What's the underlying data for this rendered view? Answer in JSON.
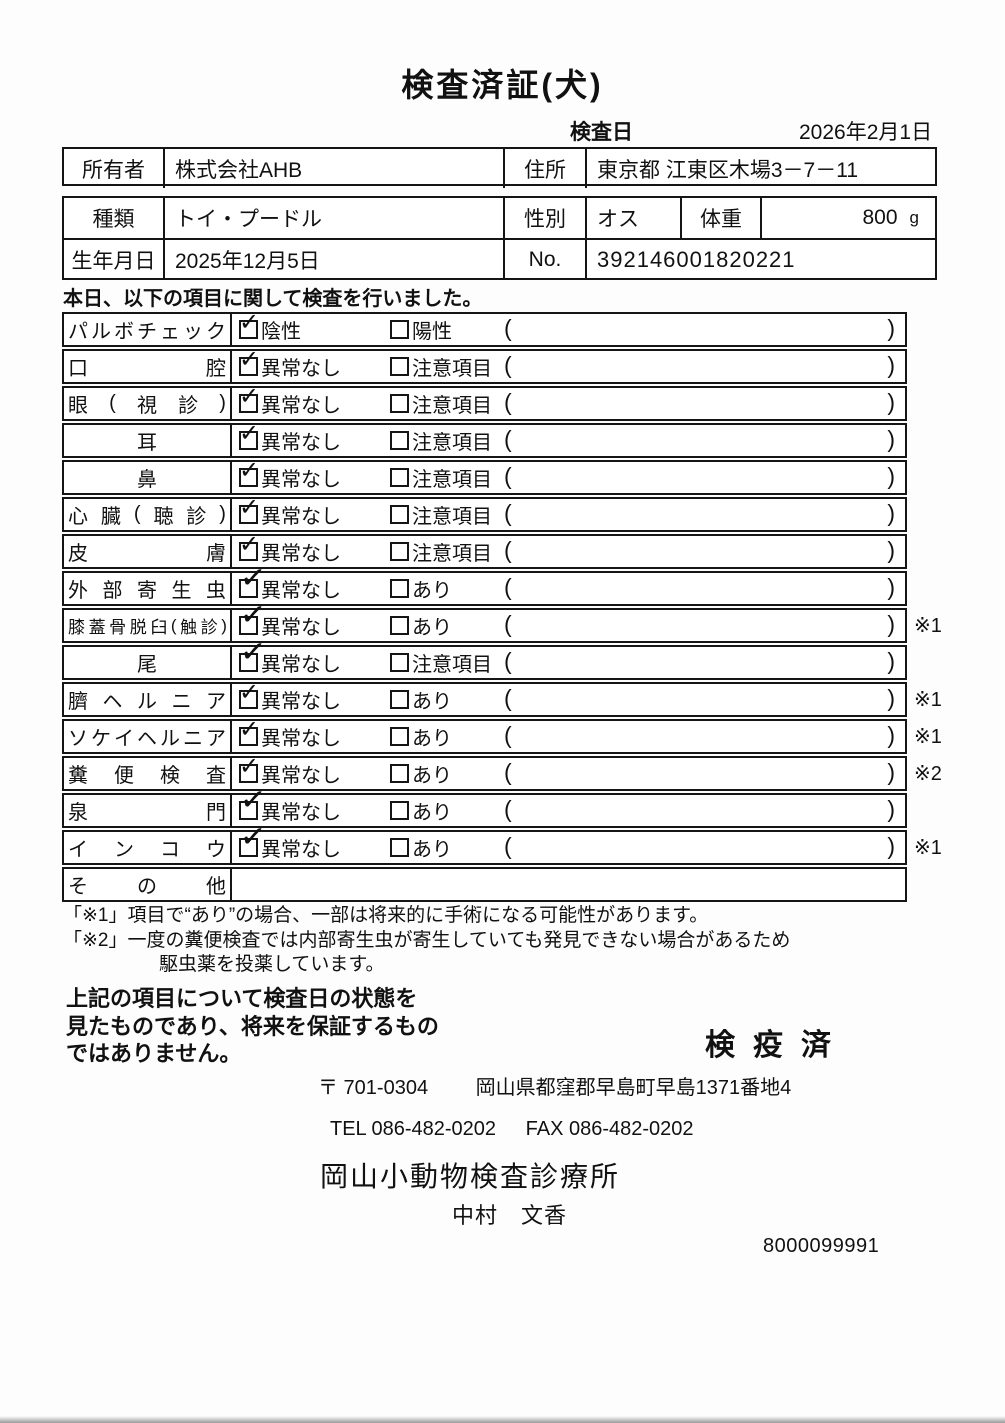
{
  "page": {
    "title": "検査済証(犬)"
  },
  "inspection": {
    "date_label": "検査日",
    "date": "2026年2月1日"
  },
  "owner_row": {
    "owner_label": "所有者",
    "owner": "株式会社AHB",
    "address_label": "住所",
    "address": "東京都 江東区木場3－7－11"
  },
  "pet": {
    "type_label": "種類",
    "type": "トイ・プードル",
    "sex_label": "性別",
    "sex": "オス",
    "weight_label": "体重",
    "weight": "800",
    "weight_unit": "g",
    "birth_label": "生年月日",
    "birth": "2025年12月5日",
    "no_label": "No.",
    "no": "392146001820221"
  },
  "intro": "本日、以下の項目に関して検査を行いました。",
  "checklist": {
    "parens": {
      "open": "(",
      "close": ")"
    },
    "rows": [
      {
        "label": "パルボチェック",
        "align": "justify",
        "small": false,
        "tick": "normal",
        "mark": "",
        "options": [
          {
            "text": "陰性",
            "checked": true
          },
          {
            "text": "陽性",
            "checked": false
          }
        ]
      },
      {
        "label": "口腔",
        "align": "justify",
        "small": false,
        "tick": "normal",
        "mark": "",
        "options": [
          {
            "text": "異常なし",
            "checked": true
          },
          {
            "text": "注意項目",
            "checked": false
          }
        ]
      },
      {
        "label": "眼(視診)",
        "align": "justify",
        "small": false,
        "tick": "normal",
        "mark": "",
        "options": [
          {
            "text": "異常なし",
            "checked": true
          },
          {
            "text": "注意項目",
            "checked": false
          }
        ]
      },
      {
        "label": "耳",
        "align": "center",
        "small": false,
        "tick": "normal",
        "mark": "",
        "options": [
          {
            "text": "異常なし",
            "checked": true
          },
          {
            "text": "注意項目",
            "checked": false
          }
        ]
      },
      {
        "label": "鼻",
        "align": "center",
        "small": false,
        "tick": "normal",
        "mark": "",
        "options": [
          {
            "text": "異常なし",
            "checked": true
          },
          {
            "text": "注意項目",
            "checked": false
          }
        ]
      },
      {
        "label": "心臓(聴診)",
        "align": "justify",
        "small": false,
        "tick": "normal",
        "mark": "",
        "options": [
          {
            "text": "異常なし",
            "checked": true
          },
          {
            "text": "注意項目",
            "checked": false
          }
        ]
      },
      {
        "label": "皮膚",
        "align": "justify",
        "small": false,
        "tick": "normal",
        "mark": "",
        "options": [
          {
            "text": "異常なし",
            "checked": true
          },
          {
            "text": "注意項目",
            "checked": false
          }
        ]
      },
      {
        "label": "外部寄生虫",
        "align": "justify",
        "small": false,
        "tick": "long",
        "mark": "",
        "options": [
          {
            "text": "異常なし",
            "checked": true
          },
          {
            "text": "あり",
            "checked": false
          }
        ]
      },
      {
        "label": "膝蓋骨脱臼(触診)",
        "align": "justify",
        "small": true,
        "tick": "long",
        "mark": "※1",
        "options": [
          {
            "text": "異常なし",
            "checked": true
          },
          {
            "text": "あり",
            "checked": false
          }
        ]
      },
      {
        "label": "尾",
        "align": "center",
        "small": false,
        "tick": "long",
        "mark": "",
        "options": [
          {
            "text": "異常なし",
            "checked": true
          },
          {
            "text": "注意項目",
            "checked": false
          }
        ]
      },
      {
        "label": "臍ヘルニア",
        "align": "justify",
        "small": false,
        "tick": "normal",
        "mark": "※1",
        "options": [
          {
            "text": "異常なし",
            "checked": true
          },
          {
            "text": "あり",
            "checked": false
          }
        ]
      },
      {
        "label": "ソケイヘルニア",
        "align": "justify",
        "small": false,
        "tick": "normal",
        "mark": "※1",
        "options": [
          {
            "text": "異常なし",
            "checked": true
          },
          {
            "text": "あり",
            "checked": false
          }
        ]
      },
      {
        "label": "糞便検査",
        "align": "justify",
        "small": false,
        "tick": "normal",
        "mark": "※2",
        "options": [
          {
            "text": "異常なし",
            "checked": true
          },
          {
            "text": "あり",
            "checked": false
          }
        ]
      },
      {
        "label": "泉門",
        "align": "justify",
        "small": false,
        "tick": "long",
        "mark": "",
        "options": [
          {
            "text": "異常なし",
            "checked": true
          },
          {
            "text": "あり",
            "checked": false
          }
        ]
      },
      {
        "label": "インコウ",
        "align": "justify",
        "small": false,
        "tick": "long",
        "mark": "※1",
        "options": [
          {
            "text": "異常なし",
            "checked": true
          },
          {
            "text": "あり",
            "checked": false
          }
        ]
      },
      {
        "label": "その他",
        "align": "justify",
        "small": false,
        "tick": "normal",
        "mark": "",
        "options": null
      }
    ]
  },
  "footnotes": [
    "「※1」項目で“あり”の場合、一部は将来的に手術になる可能性があります。",
    "「※2」一度の糞便検査では内部寄生虫が寄生していても発見できない場合があるため",
    "駆虫薬を投薬しています。"
  ],
  "disclaimer": [
    "上記の項目について検査日の状態を",
    "見たものであり、将来を保証するもの",
    "ではありません。"
  ],
  "stamp": "検疫済",
  "clinic": {
    "postal": "〒 701-0304",
    "address": "岡山県都窪郡早島町早島1371番地4",
    "tel": "TEL 086-482-0202",
    "fax": "FAX 086-482-0202",
    "name": "岡山小動物検査診療所",
    "vet": "中村　文香"
  },
  "serial": "8000099991"
}
